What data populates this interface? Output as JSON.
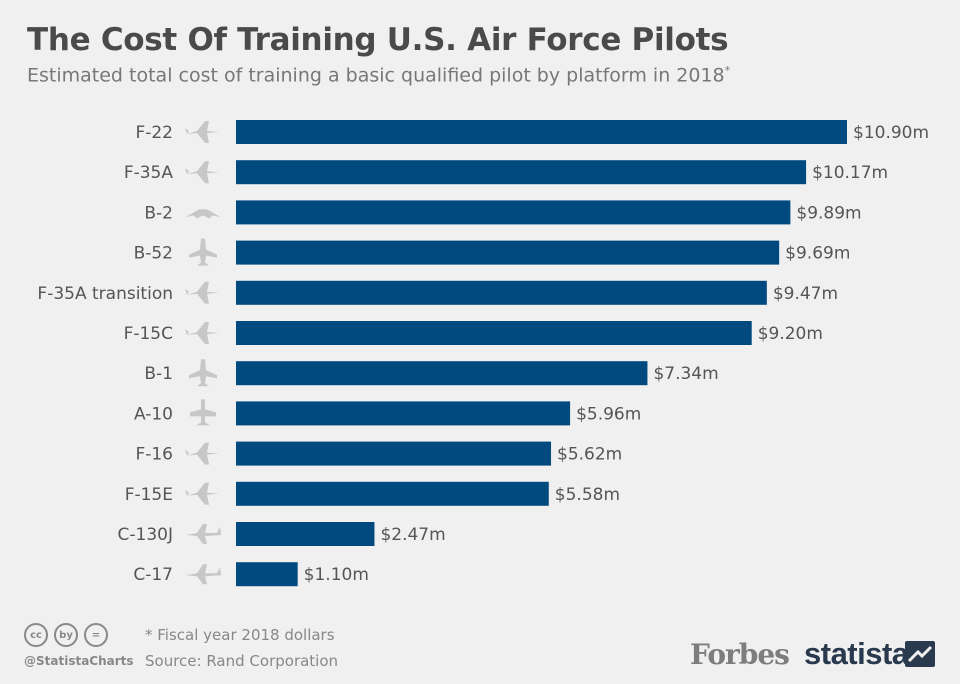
{
  "title": "The Cost Of Training U.S. Air Force Pilots",
  "subtitle": "Estimated total cost of training a basic qualified pilot by platform in 2018",
  "subtitle_mark": "*",
  "footer": {
    "note": "* Fiscal year 2018 dollars",
    "source": "Source: Rand Corporation",
    "handle": "@StatistaCharts",
    "cc_icons": [
      "cc",
      "by",
      "="
    ],
    "logo_forbes": "Forbes",
    "logo_statista": "statista"
  },
  "colors": {
    "bar": "#004a80",
    "background": "#f0f0f0",
    "icon": "#c7c7c7"
  },
  "chart_data": {
    "type": "bar",
    "orientation": "horizontal",
    "categories": [
      "F-22",
      "F-35A",
      "B-2",
      "B-52",
      "F-35A transition",
      "F-15C",
      "B-1",
      "A-10",
      "F-16",
      "F-15E",
      "C-130J",
      "C-17"
    ],
    "values": [
      10.9,
      10.17,
      9.89,
      9.69,
      9.47,
      9.2,
      7.34,
      5.96,
      5.62,
      5.58,
      2.47,
      1.1
    ],
    "value_labels": [
      "$10.90m",
      "$10.17m",
      "$9.89m",
      "$9.69m",
      "$9.47m",
      "$9.20m",
      "$7.34m",
      "$5.96m",
      "$5.62m",
      "$5.58m",
      "$2.47m",
      "$1.10m"
    ],
    "icons": [
      "fighter-jet-icon",
      "fighter-jet-icon",
      "stealth-bomber-icon",
      "bomber-icon",
      "fighter-jet-icon",
      "fighter-jet-icon",
      "bomber-icon",
      "attack-plane-icon",
      "fighter-jet-icon",
      "fighter-jet-icon",
      "transport-plane-icon",
      "transport-plane-icon"
    ],
    "xlim": [
      0,
      10.9
    ],
    "grid": false
  }
}
